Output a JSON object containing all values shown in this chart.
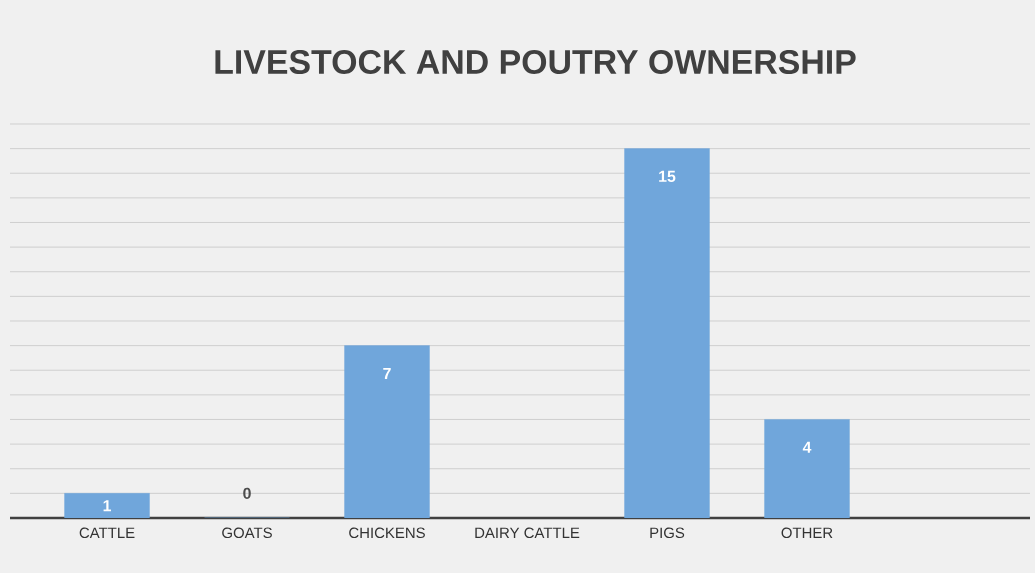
{
  "chart_data": {
    "type": "bar",
    "title": "LIVESTOCK AND POUTRY OWNERSHIP",
    "categories": [
      "CATTLE",
      "GOATS",
      "CHICKENS",
      "DAIRY CATTLE",
      "PIGS",
      "OTHER",
      null
    ],
    "values": [
      1,
      0,
      7,
      null,
      15,
      4,
      null
    ],
    "color": "#70a6db",
    "tick_labels": "x",
    "grid": "y",
    "data_labels": true
  }
}
